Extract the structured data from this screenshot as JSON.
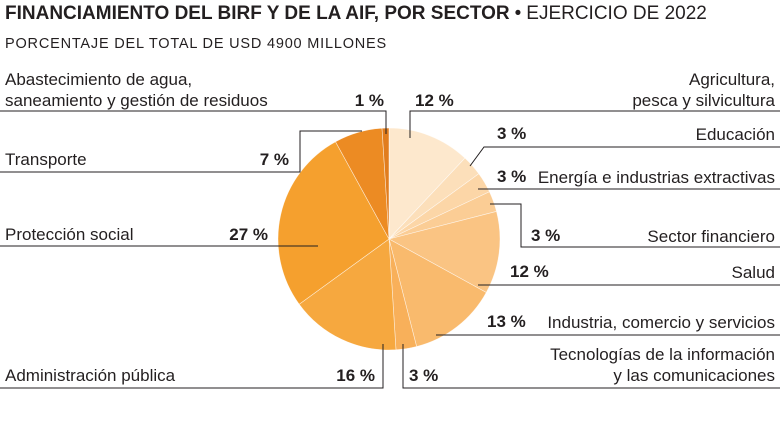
{
  "chart_data": {
    "type": "pie",
    "title": {
      "main": "FINANCIAMIENTO DEL BIRF Y DE LA AIF, POR SECTOR",
      "separator": "•",
      "period": "EJERCICIO DE 2022"
    },
    "subtitle": "PORCENTAJE DEL TOTAL DE USD 4900 MILLONES",
    "slices": [
      {
        "label": [
          "Agricultura,",
          "pesca y silvicultura"
        ],
        "value": 12,
        "value_label": "12 %",
        "color": "#fde8cd"
      },
      {
        "label": [
          "Educación"
        ],
        "value": 3,
        "value_label": "3 %",
        "color": "#fcdfba"
      },
      {
        "label": [
          "Energía e industrias extractivas"
        ],
        "value": 3,
        "value_label": "3 %",
        "color": "#fcd6a7"
      },
      {
        "label": [
          "Sector financiero"
        ],
        "value": 3,
        "value_label": "3 %",
        "color": "#fbcd95"
      },
      {
        "label": [
          "Salud"
        ],
        "value": 12,
        "value_label": "12 %",
        "color": "#fac483"
      },
      {
        "label": [
          "Industria, comercio y servicios"
        ],
        "value": 13,
        "value_label": "13 %",
        "color": "#f9ba6d"
      },
      {
        "label": [
          "Tecnologías de la información",
          "y las comunicaciones"
        ],
        "value": 3,
        "value_label": "3 %",
        "color": "#f8b05a"
      },
      {
        "label": [
          "Administración pública"
        ],
        "value": 16,
        "value_label": "16 %",
        "color": "#f6a83f"
      },
      {
        "label": [
          "Protección social"
        ],
        "value": 27,
        "value_label": "27 %",
        "color": "#f5a02e"
      },
      {
        "label": [
          "Transporte"
        ],
        "value": 7,
        "value_label": "7 %",
        "color": "#ec8b23"
      },
      {
        "label": [
          "Abastecimiento de agua,",
          "saneamiento y gestión de residuos"
        ],
        "value": 1,
        "value_label": "1 %",
        "color": "#e17d1e"
      }
    ]
  }
}
